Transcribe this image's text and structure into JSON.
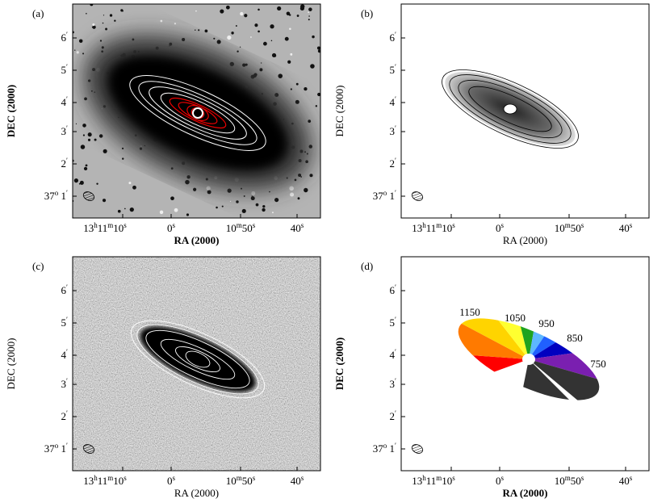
{
  "panels": [
    {
      "label": "(a)",
      "y_axis_label": "DEC (2000)",
      "x_axis_label": "RA (2000)",
      "x_ticks": [
        [
          "13",
          "h",
          "11",
          "m",
          "10",
          "s"
        ],
        [
          "0",
          "s"
        ],
        [
          "10",
          "m",
          "50",
          "s"
        ],
        [
          "40",
          "s"
        ]
      ],
      "y_ticks": [
        [
          "6",
          "′"
        ],
        [
          "5",
          "′"
        ],
        [
          "4",
          "′"
        ],
        [
          "3",
          "′"
        ],
        [
          "2",
          "′"
        ],
        [
          "37",
          "o",
          " 1",
          "′"
        ]
      ]
    },
    {
      "label": "(b)",
      "y_axis_label": "DEC (2000)",
      "x_axis_label": "RA (2000)",
      "x_ticks": [
        [
          "13",
          "h",
          "11",
          "m",
          "10",
          "s"
        ],
        [
          "0",
          "s"
        ],
        [
          "10",
          "m",
          "50",
          "s"
        ],
        [
          "40",
          "s"
        ]
      ],
      "y_ticks": [
        [
          "6",
          "′"
        ],
        [
          "5",
          "′"
        ],
        [
          "4",
          "′"
        ],
        [
          "3",
          "′"
        ],
        [
          "2",
          "′"
        ],
        [
          "37",
          "o",
          " 1",
          "′"
        ]
      ]
    },
    {
      "label": "(c)",
      "y_axis_label": "DEC (2000)",
      "x_axis_label": "RA (2000)",
      "x_ticks": [
        [
          "13",
          "h",
          "11",
          "m",
          "10",
          "s"
        ],
        [
          "0",
          "s"
        ],
        [
          "10",
          "m",
          "50",
          "s"
        ],
        [
          "40",
          "s"
        ]
      ],
      "y_ticks": [
        [
          "6",
          "′"
        ],
        [
          "5",
          "′"
        ],
        [
          "4",
          "′"
        ],
        [
          "3",
          "′"
        ],
        [
          "2",
          "′"
        ],
        [
          "37",
          "o",
          " 1",
          "′"
        ]
      ]
    },
    {
      "label": "(d)",
      "y_axis_label": "DEC (2000)",
      "x_axis_label": "RA (2000)",
      "x_ticks": [
        [
          "13",
          "h",
          "11",
          "m",
          "10",
          "s"
        ],
        [
          "0",
          "s"
        ],
        [
          "10",
          "m",
          "50",
          "s"
        ],
        [
          "40",
          "s"
        ]
      ],
      "y_ticks": [
        [
          "6",
          "′"
        ],
        [
          "5",
          "′"
        ],
        [
          "4",
          "′"
        ],
        [
          "3",
          "′"
        ],
        [
          "2",
          "′"
        ],
        [
          "37",
          "o",
          " 1",
          "′"
        ]
      ],
      "annotations": [
        "1150",
        "1050",
        "950",
        "850",
        "750"
      ]
    }
  ]
}
